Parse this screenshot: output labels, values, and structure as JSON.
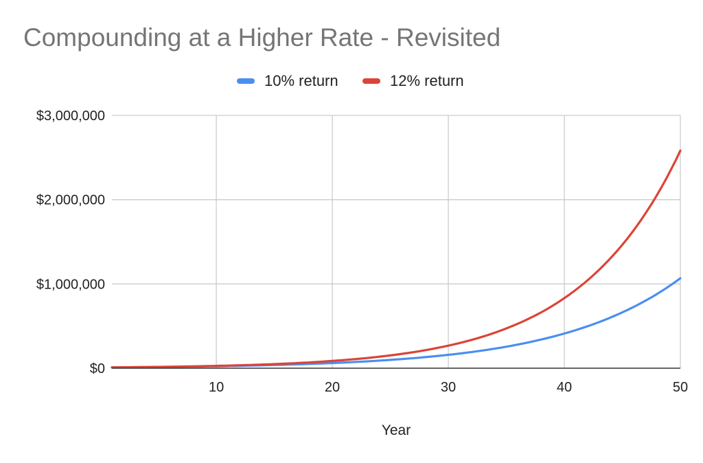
{
  "chart_data": {
    "type": "line",
    "title": "Compounding at a Higher Rate - Revisited",
    "xlabel": "Year",
    "ylabel": "",
    "xlim": [
      1,
      50
    ],
    "ylim": [
      0,
      3000000
    ],
    "x_ticks": [
      10,
      20,
      30,
      40,
      50
    ],
    "y_ticks": [
      0,
      1000000,
      2000000,
      3000000
    ],
    "y_tick_labels": [
      "$0",
      "$1,000,000",
      "$2,000,000",
      "$3,000,000"
    ],
    "grid": true,
    "legend_position": "top-center",
    "x": [
      1,
      5,
      10,
      15,
      20,
      25,
      30,
      35,
      40,
      45,
      50
    ],
    "series": [
      {
        "name": "10% return",
        "color": "#4a8ef0",
        "values": [
          10000,
          14600,
          23600,
          38000,
          61200,
          98500,
          158600,
          255400,
          411400,
          662500,
          1067000
        ]
      },
      {
        "name": "12% return",
        "color": "#db4437",
        "values": [
          10000,
          15700,
          27700,
          48900,
          86200,
          151900,
          267700,
          471700,
          831300,
          1465000,
          2582000
        ]
      }
    ]
  }
}
